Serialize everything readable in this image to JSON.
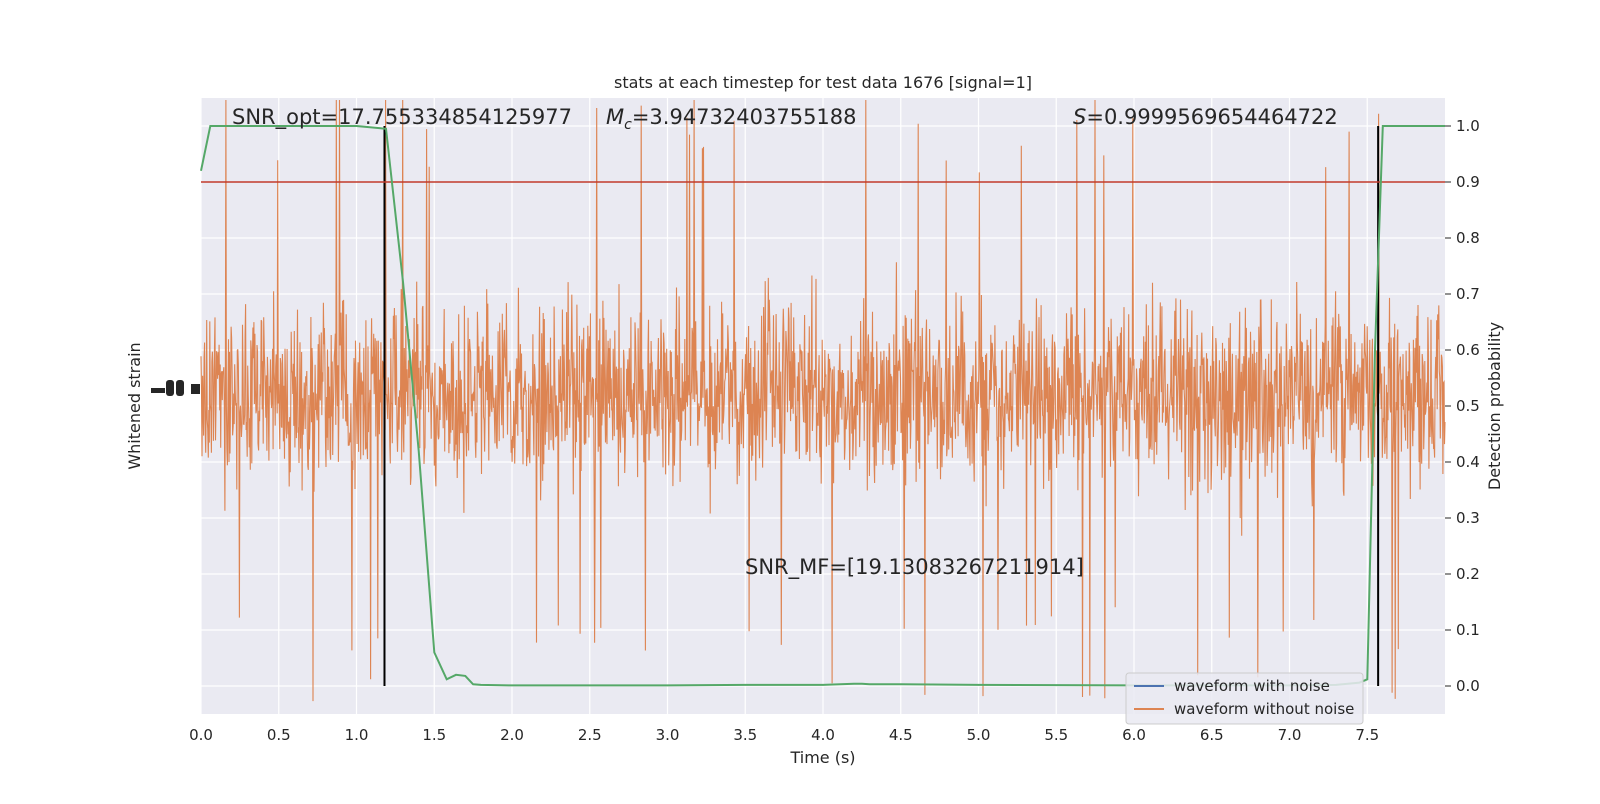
{
  "chart_data": {
    "type": "line",
    "title": "stats at each timestep for test data 1676 [signal=1]",
    "xlabel": "Time (s)",
    "ylabel_left": "Whitened strain",
    "ylabel_right": "Detection probability",
    "xlim": [
      0,
      8
    ],
    "ylim_right": [
      -0.05,
      1.05
    ],
    "x_ticks": [
      "0.0",
      "0.5",
      "1.0",
      "1.5",
      "2.0",
      "2.5",
      "3.0",
      "3.5",
      "4.0",
      "4.5",
      "5.0",
      "5.5",
      "6.0",
      "6.5",
      "7.0",
      "7.5"
    ],
    "y_right_ticks": [
      "0.0",
      "0.1",
      "0.2",
      "0.3",
      "0.4",
      "0.5",
      "0.6",
      "0.7",
      "0.8",
      "0.9",
      "1.0"
    ],
    "annotations": {
      "snr_opt": "SNR_opt=17.755334854125977",
      "mc_label": "M",
      "mc_sub": "c",
      "mc_value": "=3.94732403755188",
      "s_label": "S",
      "s_value": "=0.9999569654464722",
      "snr_mf": "SNR_MF=[19.13083267211914]"
    },
    "threshold": {
      "value": 0.9,
      "color": "#c0392b"
    },
    "vertical_markers": [
      1.18,
      7.57
    ],
    "series": [
      {
        "name": "waveform with noise",
        "color": "#4c72b0"
      },
      {
        "name": "waveform without noise",
        "color": "#dd8452"
      }
    ],
    "detection_probability": {
      "color": "#55a868",
      "x": [
        0.0,
        0.06,
        0.2,
        0.5,
        1.0,
        1.19,
        1.3,
        1.4,
        1.5,
        1.58,
        1.64,
        1.7,
        1.75,
        1.8,
        2.0,
        3.0,
        3.5,
        4.0,
        4.2,
        4.25,
        4.3,
        4.5,
        5.0,
        6.0,
        7.0,
        7.3,
        7.45,
        7.5,
        7.55,
        7.6,
        7.65,
        8.0
      ],
      "y": [
        0.92,
        1.0,
        1.0,
        1.0,
        1.0,
        0.995,
        0.72,
        0.42,
        0.06,
        0.012,
        0.02,
        0.018,
        0.003,
        0.002,
        0.001,
        0.001,
        0.002,
        0.002,
        0.004,
        0.004,
        0.003,
        0.003,
        0.002,
        0.001,
        0.001,
        0.002,
        0.006,
        0.012,
        0.6,
        1.0,
        1.0,
        1.0
      ]
    },
    "grid": true,
    "legend_position": "bottom-right",
    "colors": {
      "plot_bg": "#eaeaf2",
      "grid": "#ffffff"
    }
  }
}
